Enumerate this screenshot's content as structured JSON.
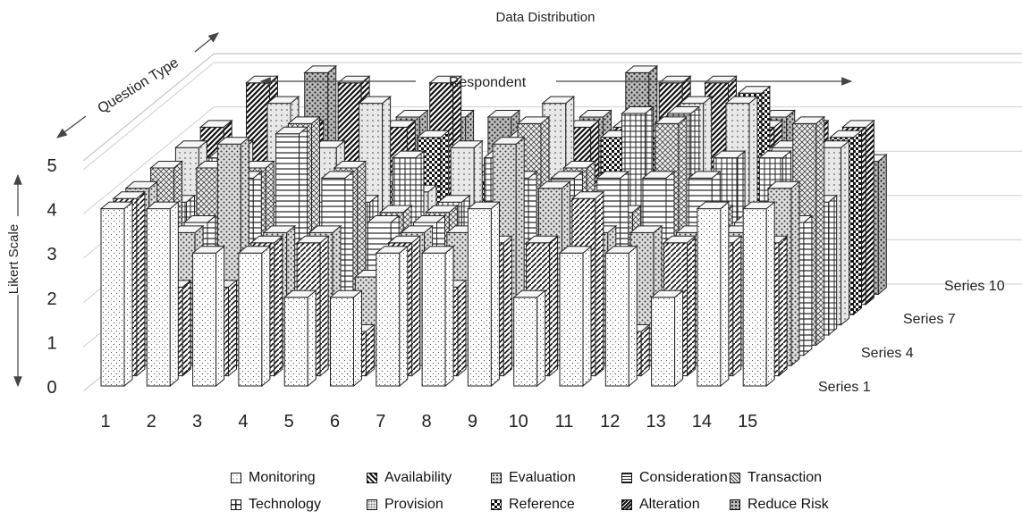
{
  "chart_data": {
    "type": "bar",
    "title": "Data Distribution",
    "xlabel": "Respondent",
    "ylabel": "Likert Scale",
    "zlabel": "Question Type",
    "ylim": [
      0,
      5
    ],
    "yticks": [
      "0",
      "1",
      "2",
      "3",
      "4",
      "5"
    ],
    "categories": [
      "1",
      "2",
      "3",
      "4",
      "5",
      "6",
      "7",
      "8",
      "9",
      "10",
      "11",
      "12",
      "13",
      "14",
      "15"
    ],
    "depth_labels": [
      "Series 1",
      "Series 4",
      "Series 7",
      "Series 10"
    ],
    "series": [
      {
        "name": "Monitoring",
        "values": [
          4,
          4,
          3,
          3,
          2,
          2,
          3,
          3,
          4,
          2,
          3,
          3,
          2,
          4,
          4
        ]
      },
      {
        "name": "Availability",
        "values": [
          4,
          2,
          2,
          3,
          3,
          1,
          3,
          2,
          3,
          3,
          4,
          1,
          3,
          3,
          3
        ]
      },
      {
        "name": "Evaluation",
        "values": [
          4,
          3,
          5,
          3,
          3,
          2,
          3,
          3,
          5,
          4,
          3,
          3,
          3,
          3,
          4
        ]
      },
      {
        "name": "Consideration",
        "values": [
          3,
          3,
          4,
          5,
          4,
          3,
          3,
          2,
          4,
          4,
          4,
          4,
          4,
          3,
          3
        ]
      },
      {
        "name": "Transaction",
        "values": [
          4,
          4,
          4,
          5,
          4,
          3,
          3,
          3,
          5,
          4,
          3,
          5,
          3,
          3,
          5
        ]
      },
      {
        "name": "Technology",
        "values": [
          3,
          4,
          3,
          3,
          3,
          4,
          3,
          4,
          3,
          3,
          5,
          5,
          4,
          4,
          3
        ]
      },
      {
        "name": "Provision",
        "values": [
          4,
          4,
          5,
          4,
          5,
          3,
          4,
          3,
          5,
          3,
          3,
          5,
          5,
          4,
          4
        ]
      },
      {
        "name": "Reference",
        "values": [
          3,
          3,
          4,
          3,
          3,
          4,
          3,
          4,
          3,
          4,
          4,
          3,
          5,
          3,
          4
        ]
      },
      {
        "name": "Alteration",
        "values": [
          4,
          5,
          4,
          5,
          4,
          5,
          3,
          3,
          4,
          4,
          5,
          5,
          4,
          4,
          4
        ]
      },
      {
        "name": "Reduce Risk",
        "values": [
          3,
          4,
          5,
          4,
          4,
          4,
          4,
          3,
          4,
          5,
          4,
          4,
          4,
          3,
          3
        ]
      }
    ],
    "series_colors": [
      "#ffffff",
      "#e3e3e3",
      "#c9c9c9",
      "#f2f2f2",
      "#dcdcdc",
      "#ececec",
      "#d4d4d4",
      "#bfbfbf",
      "#a8a8a8",
      "#b8b8b8"
    ],
    "grid": true,
    "legend_position": "bottom"
  }
}
